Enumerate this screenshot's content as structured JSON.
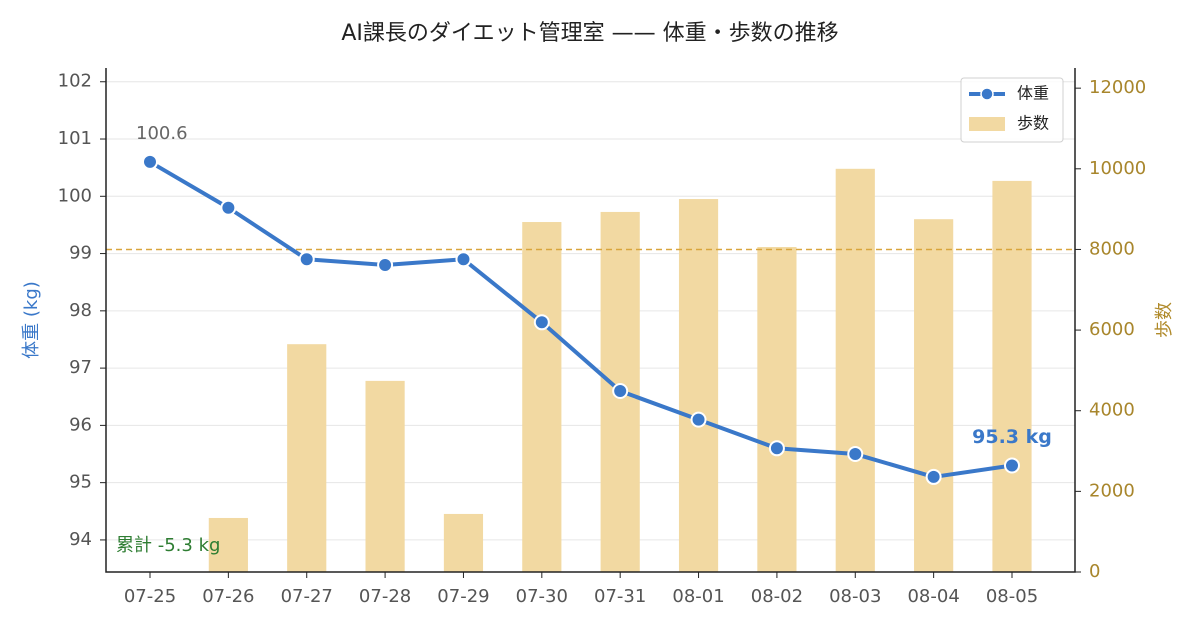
{
  "chart_data": {
    "type": "combo",
    "title": "AI課長のダイエット管理室 —— 体重・歩数の推移",
    "categories": [
      "07-25",
      "07-26",
      "07-27",
      "07-28",
      "07-29",
      "07-30",
      "07-31",
      "08-01",
      "08-02",
      "08-03",
      "08-04",
      "08-05"
    ],
    "series": [
      {
        "name": "体重",
        "type": "line",
        "axis": "y",
        "color": "#3a78c9",
        "values": [
          100.6,
          99.8,
          98.9,
          98.8,
          98.9,
          97.8,
          96.6,
          96.1,
          95.6,
          95.5,
          95.1,
          95.3
        ],
        "value_labels": [
          "100.6",
          null,
          null,
          null,
          null,
          null,
          null,
          null,
          null,
          null,
          null,
          "95.3 kg"
        ]
      },
      {
        "name": "歩数",
        "type": "bar",
        "axis": "y2",
        "color": "#f2d9a2",
        "values": [
          null,
          1340,
          5650,
          4740,
          1440,
          8680,
          8930,
          9250,
          8060,
          10000,
          8750,
          9700
        ]
      }
    ],
    "ylabel": "体重 (kg)",
    "y2label": "歩数",
    "ylim": [
      93.44,
      102.24
    ],
    "yticks": [
      94,
      95,
      96,
      97,
      98,
      99,
      100,
      101,
      102
    ],
    "y2lim": [
      0,
      12500
    ],
    "y2ticks": [
      0,
      2000,
      4000,
      6000,
      8000,
      10000,
      12000
    ],
    "reference_lines": [
      {
        "value": 8000,
        "axis": "y2",
        "color": "#d9a53c"
      }
    ],
    "annotations": [
      {
        "text": "累計 -5.3 kg",
        "color": "#2e7d32"
      }
    ],
    "grid": true,
    "legend": "upper right"
  }
}
